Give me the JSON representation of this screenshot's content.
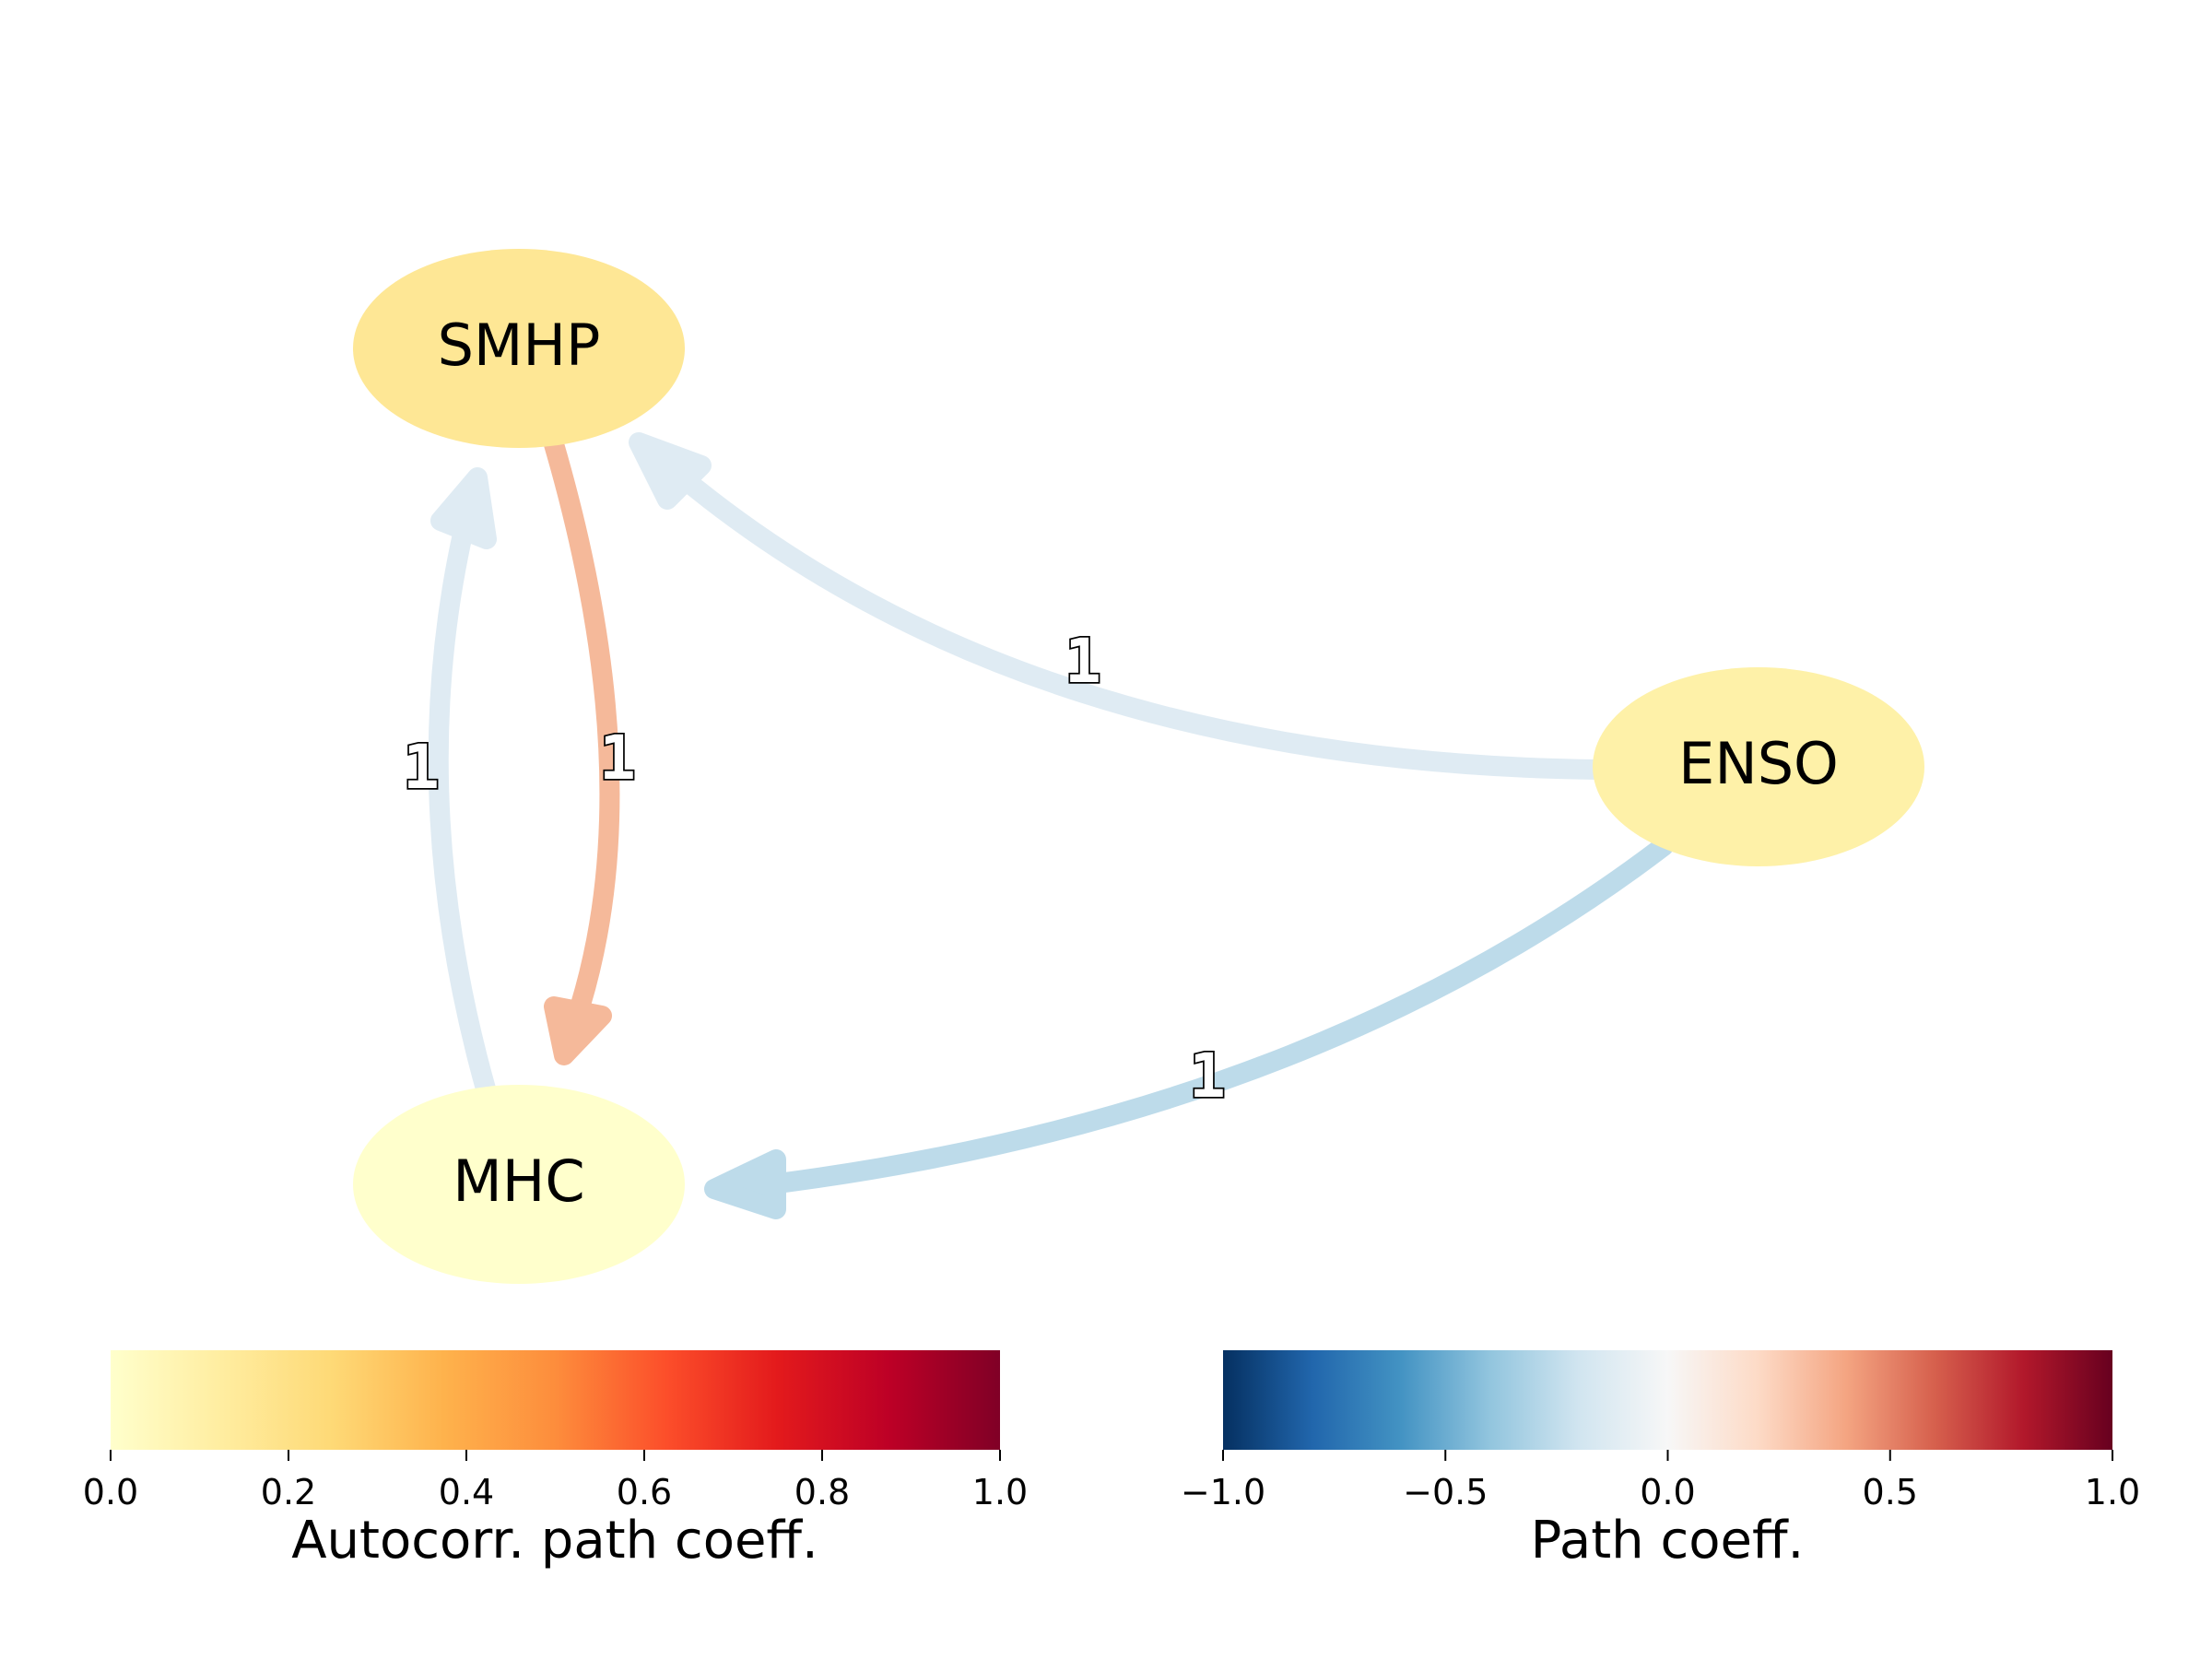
{
  "graph": {
    "nodes": [
      {
        "id": "SMHP",
        "label": "SMHP",
        "autocorr": 0.2,
        "color": "#fee795"
      },
      {
        "id": "MHC",
        "label": "MHC",
        "autocorr": 0.0,
        "color": "#ffffcc"
      },
      {
        "id": "ENSO",
        "label": "ENSO",
        "autocorr": 0.1,
        "color": "#fef1a8"
      }
    ],
    "edges": [
      {
        "from": "ENSO",
        "to": "SMHP",
        "lag_label": "1",
        "coeff": -0.1,
        "color": "#dfebf3"
      },
      {
        "from": "ENSO",
        "to": "MHC",
        "lag_label": "1",
        "coeff": -0.25,
        "color": "#bddbea"
      },
      {
        "from": "SMHP",
        "to": "MHC",
        "lag_label": "1",
        "coeff": 0.35,
        "color": "#f5b99a"
      },
      {
        "from": "MHC",
        "to": "SMHP",
        "lag_label": "1",
        "coeff": -0.1,
        "color": "#dfebf3"
      }
    ]
  },
  "colorbars": [
    {
      "title": "Autocorr. path coeff.",
      "colormap": "YlOrRd",
      "range": [
        0.0,
        1.0
      ],
      "ticks": [
        "0.0",
        "0.2",
        "0.4",
        "0.6",
        "0.8",
        "1.0"
      ],
      "stops": [
        "#ffffcc",
        "#ffeda0",
        "#fed976",
        "#feb24c",
        "#fd8d3c",
        "#fc4e2a",
        "#e31a1c",
        "#bd0026",
        "#800026"
      ]
    },
    {
      "title": "Path coeff.",
      "colormap": "RdBu_r",
      "range": [
        -1.0,
        1.0
      ],
      "ticks": [
        "−1.0",
        "−0.5",
        "0.0",
        "0.5",
        "1.0"
      ],
      "stops": [
        "#053061",
        "#2166ac",
        "#4393c3",
        "#92c5de",
        "#d1e5f0",
        "#f7f7f7",
        "#fddbc7",
        "#f4a582",
        "#d6604d",
        "#b2182b",
        "#67001f"
      ]
    }
  ]
}
